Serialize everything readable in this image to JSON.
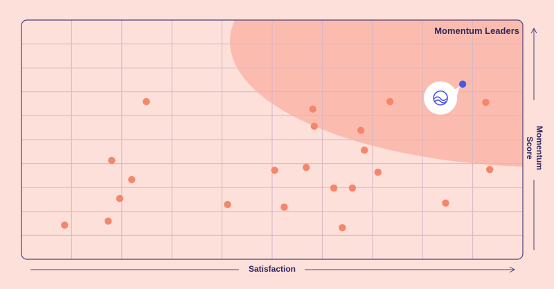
{
  "chart_data": {
    "type": "scatter",
    "title": "",
    "zone_label": "Momentum Leaders",
    "xlabel": "Satisfaction",
    "ylabel": "Momentum Score",
    "xlim": [
      0,
      100
    ],
    "ylim": [
      0,
      100
    ],
    "grid": true,
    "points": [
      {
        "x": 8.6,
        "y": 14.3
      },
      {
        "x": 17.3,
        "y": 16.0
      },
      {
        "x": 19.6,
        "y": 25.4
      },
      {
        "x": 18.0,
        "y": 41.3
      },
      {
        "x": 22.0,
        "y": 33.3
      },
      {
        "x": 24.9,
        "y": 65.9
      },
      {
        "x": 41.1,
        "y": 22.9
      },
      {
        "x": 50.5,
        "y": 37.2
      },
      {
        "x": 52.4,
        "y": 21.8
      },
      {
        "x": 56.8,
        "y": 38.4
      },
      {
        "x": 58.1,
        "y": 62.8
      },
      {
        "x": 58.4,
        "y": 55.6
      },
      {
        "x": 62.3,
        "y": 29.8
      },
      {
        "x": 64.0,
        "y": 13.2
      },
      {
        "x": 66.0,
        "y": 29.8
      },
      {
        "x": 67.7,
        "y": 53.9
      },
      {
        "x": 68.4,
        "y": 45.6
      },
      {
        "x": 71.1,
        "y": 36.4
      },
      {
        "x": 73.5,
        "y": 65.9
      },
      {
        "x": 84.6,
        "y": 23.5
      },
      {
        "x": 92.6,
        "y": 65.6
      },
      {
        "x": 93.4,
        "y": 37.5
      }
    ],
    "highlight": {
      "x": 88.0,
      "y": 73.2
    },
    "colors": {
      "background": "#fde0da",
      "zone": "#fbbcaf",
      "point": "#f5866c",
      "highlight": "#4a58e8",
      "grid": "#d7b5c8",
      "frame": "#4a3f78",
      "text": "#2d2660"
    },
    "logo_icon": "wave-circle-icon"
  }
}
